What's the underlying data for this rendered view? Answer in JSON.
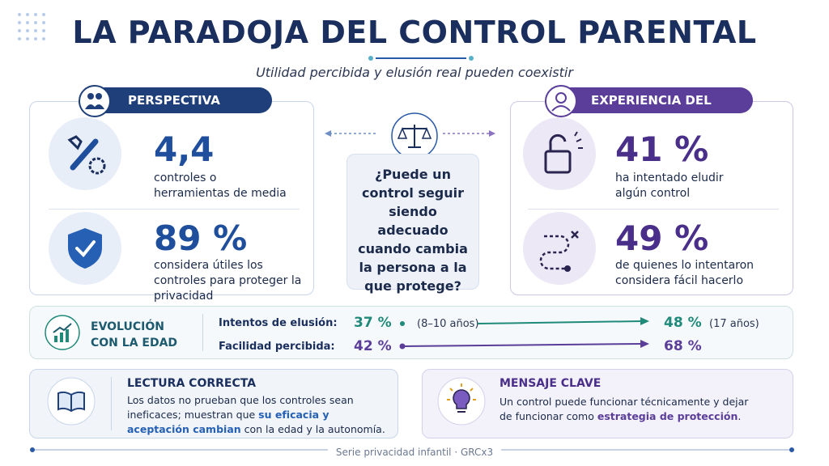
{
  "header": {
    "title": "LA PARADOJA DEL CONTROL PARENTAL",
    "subtitle": "Utilidad percibida y elusión real pueden coexistir"
  },
  "adult": {
    "heading": "PERSPECTIVA ADULTA",
    "stats": [
      {
        "value": "4,4",
        "text": "controles o herramientas de media"
      },
      {
        "value": "89 %",
        "text": "considera útiles los controles para proteger la privacidad"
      }
    ]
  },
  "center": {
    "question": "¿Puede un control seguir siendo adecuado cuando cambia la persona a la que protege?"
  },
  "minor": {
    "heading": "EXPERIENCIA DEL MENOR",
    "stats": [
      {
        "value": "41 %",
        "text": "ha intentado eludir algún control"
      },
      {
        "value": "49 %",
        "text": "de quienes lo intentaron considera fácil hacerlo"
      }
    ]
  },
  "evolution": {
    "title": "EVOLUCIÓN CON LA EDAD",
    "rows": [
      {
        "label": "Intentos de elusión:",
        "start": "37 %",
        "start_note": "(8–10 años)",
        "end": "48 %",
        "end_note": "(17 años)"
      },
      {
        "label": "Facilidad percibida:",
        "start": "42 %",
        "end": "68 %"
      }
    ]
  },
  "reading": {
    "title": "LECTURA CORRECTA",
    "text": [
      "Los datos no prueban que los controles sean ineficaces; muestran que ",
      "su eficacia y aceptación cambian",
      " con la edad y la autonomía."
    ]
  },
  "message": {
    "title": "MENSAJE CLAVE",
    "text": [
      "Un control puede funcionar técnicamente y dejar de funcionar como ",
      "estrategia de protección",
      "."
    ]
  },
  "footer": {
    "text": "Serie privacidad infantil · GRCx3"
  }
}
